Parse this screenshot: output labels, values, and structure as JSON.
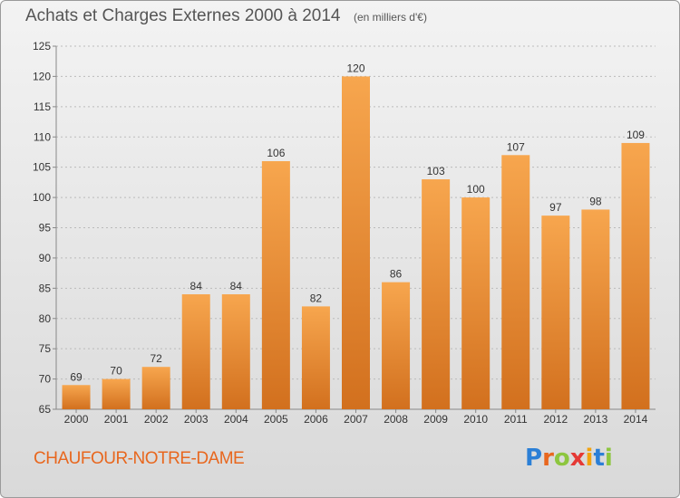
{
  "header": {
    "title": "Achats et Charges Externes 2000 à 2014",
    "subtitle": "(en milliers d'€)"
  },
  "footer": {
    "commune": "CHAUFOUR-NOTRE-DAME",
    "logo_text": "Proxiti",
    "logo_colors": [
      "#2b7fd6",
      "#e8671e",
      "#8dc63f",
      "#e53935",
      "#f2a30f",
      "#2b7fd6",
      "#8dc63f"
    ]
  },
  "colors": {
    "bar_light": "#f7a64e",
    "bar_dark": "#d2701e",
    "axis": "#888888",
    "grid": "#bbbbbb",
    "label": "#333333"
  },
  "chart_data": {
    "type": "bar",
    "categories": [
      "2000",
      "2001",
      "2002",
      "2003",
      "2004",
      "2005",
      "2006",
      "2007",
      "2008",
      "2009",
      "2010",
      "2011",
      "2012",
      "2013",
      "2014"
    ],
    "values": [
      69,
      70,
      72,
      84,
      84,
      106,
      82,
      120,
      86,
      103,
      100,
      107,
      97,
      98,
      109
    ],
    "ylim": [
      65,
      125
    ],
    "yticks": [
      65,
      70,
      75,
      80,
      85,
      90,
      95,
      100,
      105,
      110,
      115,
      120,
      125
    ],
    "grid": true,
    "data_labels": true
  }
}
